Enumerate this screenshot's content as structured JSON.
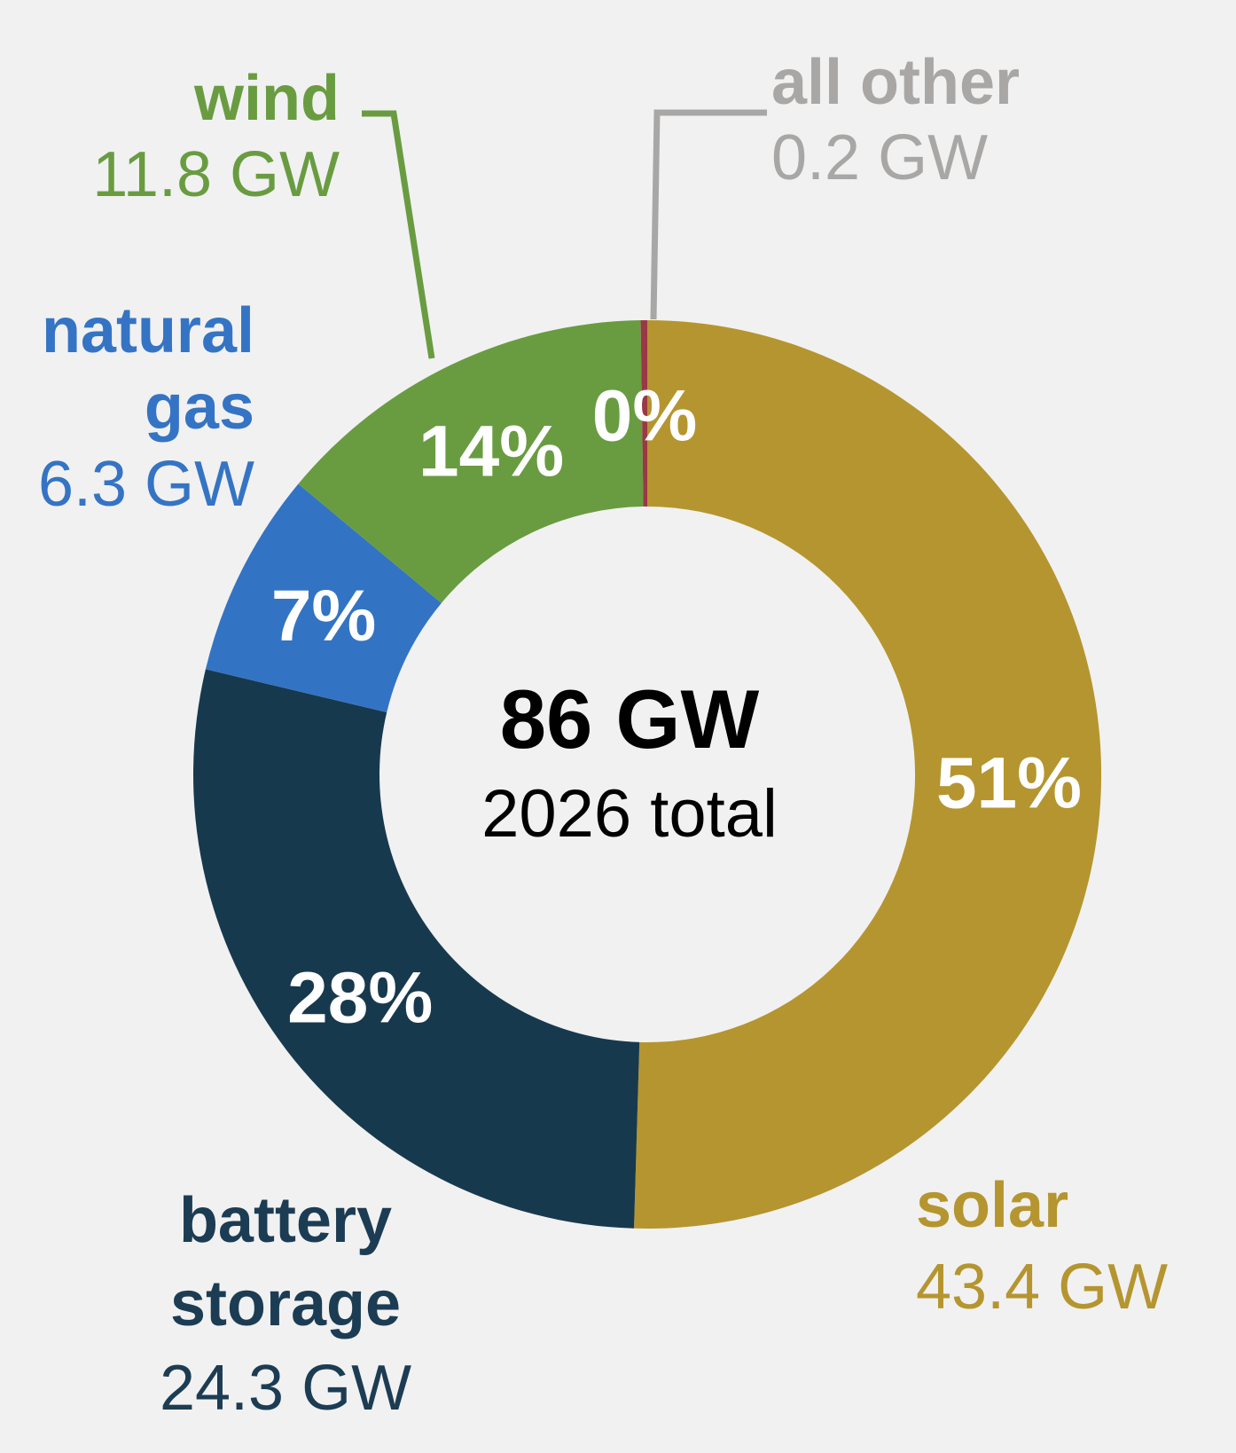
{
  "chart_data": {
    "type": "donut",
    "title": "86 GW",
    "subtitle": "2026 total",
    "unit": "GW",
    "total_gw": 86,
    "year": "2026",
    "direction": "clockwise",
    "start_angle_deg": 0,
    "legend_position": "around-chart-callouts",
    "percent_label_color": "#ffffff",
    "center": {
      "title": "86 GW",
      "caption": "2026 total",
      "color": "#000000"
    },
    "slices": [
      {
        "id": "solar",
        "name": "solar",
        "name_lines": [
          "solar"
        ],
        "value_gw": 43.4,
        "gw_label": "43.4 GW",
        "percent": 51,
        "percent_label": "51%",
        "color": "#b5952f",
        "label_color": "#b5952f"
      },
      {
        "id": "battery-storage",
        "name": "battery storage",
        "name_lines": [
          "battery",
          "storage"
        ],
        "value_gw": 24.3,
        "gw_label": "24.3 GW",
        "percent": 28,
        "percent_label": "28%",
        "color": "#17394e",
        "label_color": "#1c3c53"
      },
      {
        "id": "natural-gas",
        "name": "natural gas",
        "name_lines": [
          "natural",
          "gas"
        ],
        "value_gw": 6.3,
        "gw_label": "6.3 GW",
        "percent": 7,
        "percent_label": "7%",
        "color": "#3373c4",
        "label_color": "#3574c4"
      },
      {
        "id": "wind",
        "name": "wind",
        "name_lines": [
          "wind"
        ],
        "value_gw": 11.8,
        "gw_label": "11.8 GW",
        "percent": 14,
        "percent_label": "14%",
        "color": "#699c41",
        "label_color": "#699c41"
      },
      {
        "id": "all-other",
        "name": "all other",
        "name_lines": [
          "all other"
        ],
        "value_gw": 0.2,
        "gw_label": "0.2 GW",
        "percent": 0,
        "percent_label": "0%",
        "color": "#9a3846",
        "label_color": "#a8a7a6"
      }
    ]
  }
}
